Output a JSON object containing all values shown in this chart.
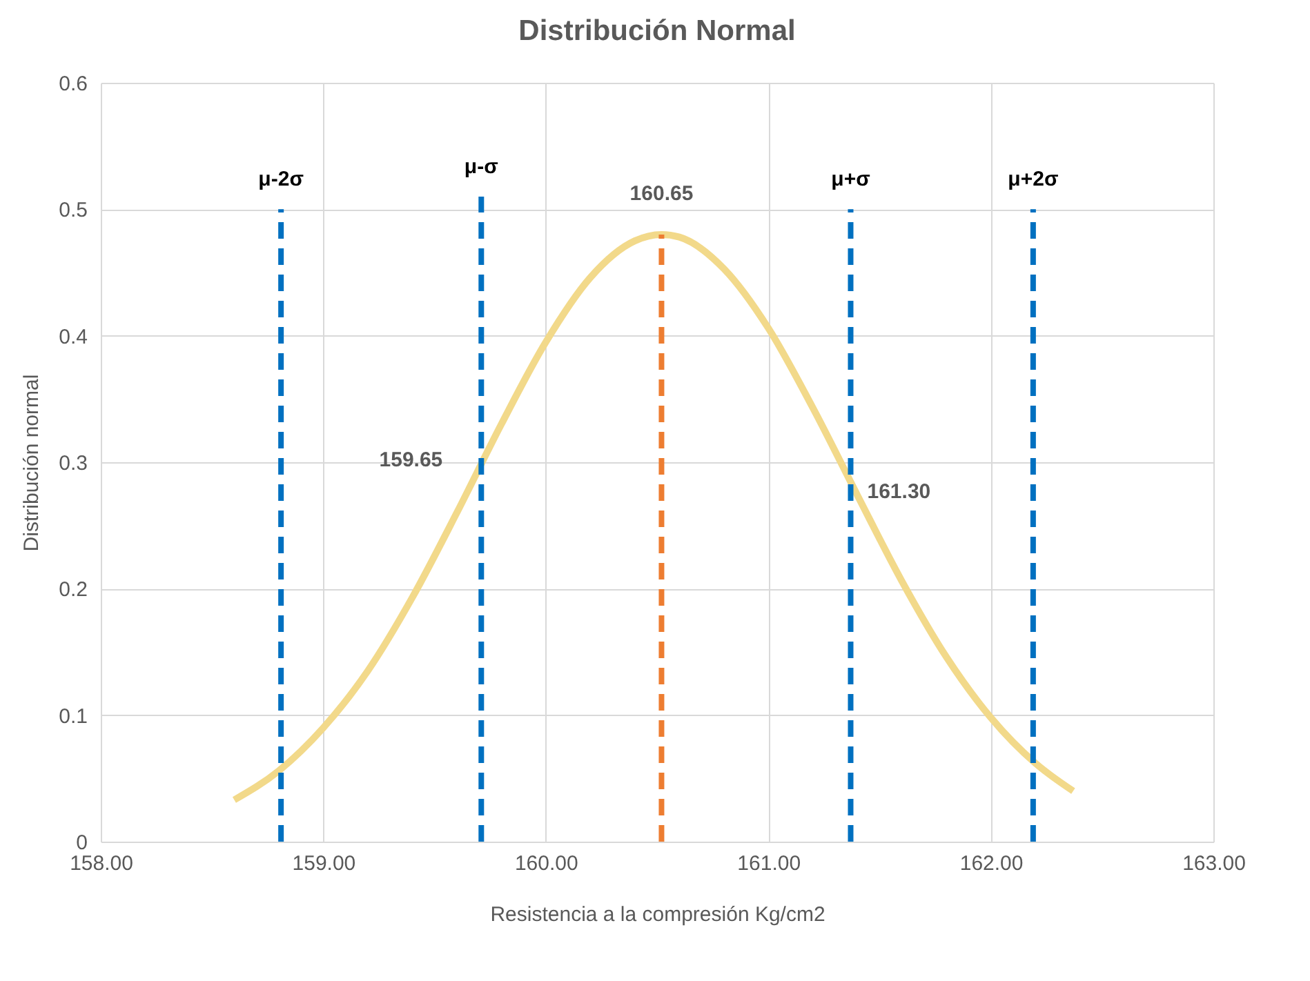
{
  "chart_data": {
    "type": "line",
    "title": "Distribución Normal",
    "xlabel": "Resistencia a la compresión Kg/cm2",
    "ylabel": "Distribución normal",
    "series": [
      {
        "color": "#f2d98a",
        "x": [
          158.6,
          158.8,
          159.0,
          159.2,
          159.4,
          159.6,
          159.8,
          160.0,
          160.2,
          160.4,
          160.52,
          160.6,
          160.8,
          161.0,
          161.2,
          161.4,
          161.6,
          161.8,
          162.0,
          162.2,
          162.37
        ],
        "values": [
          0.033,
          0.056,
          0.09,
          0.135,
          0.193,
          0.26,
          0.33,
          0.395,
          0.446,
          0.475,
          0.48,
          0.478,
          0.453,
          0.406,
          0.343,
          0.274,
          0.206,
          0.146,
          0.098,
          0.062,
          0.04
        ],
        "line_style": "solid"
      },
      {
        "name": "μ-2σ",
        "color": "#0070c0",
        "x": [
          158.81,
          158.81
        ],
        "values": [
          0,
          0.5
        ],
        "line_style": "dashed"
      },
      {
        "name": "μ-σ",
        "color": "#0070c0",
        "x": [
          159.71,
          159.71
        ],
        "values": [
          0,
          0.51
        ],
        "line_style": "dashed"
      },
      {
        "color": "#ed7d31",
        "x": [
          160.52,
          160.52
        ],
        "values": [
          0,
          0.48
        ],
        "line_style": "dashed"
      },
      {
        "name": "μ+σ",
        "color": "#0070c0",
        "x": [
          161.37,
          161.37
        ],
        "values": [
          0,
          0.5
        ],
        "line_style": "dashed"
      },
      {
        "name": "μ+2σ",
        "color": "#0070c0",
        "x": [
          162.19,
          162.19
        ],
        "values": [
          0,
          0.5
        ],
        "line_style": "dashed"
      }
    ],
    "annotations": [
      {
        "text": "160.65",
        "x": 160.52,
        "y": 0.48
      },
      {
        "text": "159.65",
        "x": 159.71,
        "y": 0.298
      },
      {
        "text": "161.30",
        "x": 161.37,
        "y": 0.29
      }
    ],
    "xlim": [
      158,
      163
    ],
    "xticks": [
      {
        "value": 158,
        "label": "158.00"
      },
      {
        "value": 159,
        "label": "159.00"
      },
      {
        "value": 160,
        "label": "160.00"
      },
      {
        "value": 161,
        "label": "161.00"
      },
      {
        "value": 162,
        "label": "162.00"
      },
      {
        "value": 163,
        "label": "163.00"
      }
    ],
    "ylim": [
      0,
      0.6
    ],
    "yticks": [
      0,
      0.1,
      0.2,
      0.3,
      0.4,
      0.5,
      0.6
    ],
    "grid": true
  }
}
